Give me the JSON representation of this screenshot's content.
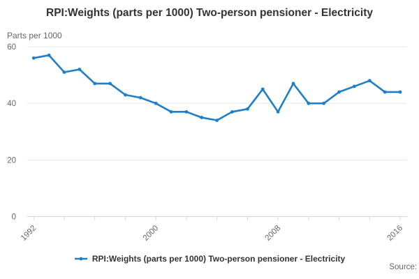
{
  "header": {
    "title": "RPI:Weights (parts per 1000) Two-person pensioner - Electricity"
  },
  "y_axis_title": "Parts per 1000",
  "legend": {
    "label": "RPI:Weights (parts per 1000) Two-person pensioner - Electricity"
  },
  "source_label": "Source:",
  "colors": {
    "line": "#1e7ec8",
    "axis": "#ccd6eb",
    "grid": "#e6e6e6",
    "muted_text": "#666666",
    "title_text": "#333333"
  },
  "chart_data": {
    "type": "line",
    "title": "RPI:Weights (parts per 1000) Two-person pensioner - Electricity",
    "ylabel": "Parts per 1000",
    "x": [
      1992,
      1993,
      1994,
      1995,
      1996,
      1997,
      1998,
      1999,
      2000,
      2001,
      2002,
      2003,
      2004,
      2005,
      2006,
      2007,
      2008,
      2009,
      2010,
      2011,
      2012,
      2013,
      2014,
      2015,
      2016
    ],
    "series": [
      {
        "name": "RPI:Weights (parts per 1000) Two-person pensioner - Electricity",
        "values": [
          56,
          57,
          51,
          52,
          47,
          47,
          43,
          42,
          40,
          37,
          37,
          35,
          34,
          37,
          38,
          45,
          37,
          47,
          40,
          40,
          44,
          46,
          48,
          44,
          44
        ]
      }
    ],
    "ylim": [
      0,
      60
    ],
    "yticks": [
      0,
      20,
      40,
      60
    ],
    "xticks": [
      1992,
      1994,
      1996,
      1998,
      2000,
      2002,
      2004,
      2006,
      2008,
      2010,
      2012,
      2014,
      2016
    ],
    "xtick_labels": [
      1992,
      2000,
      2008,
      2016
    ],
    "grid": true,
    "legend_position": "bottom",
    "markers": true
  }
}
